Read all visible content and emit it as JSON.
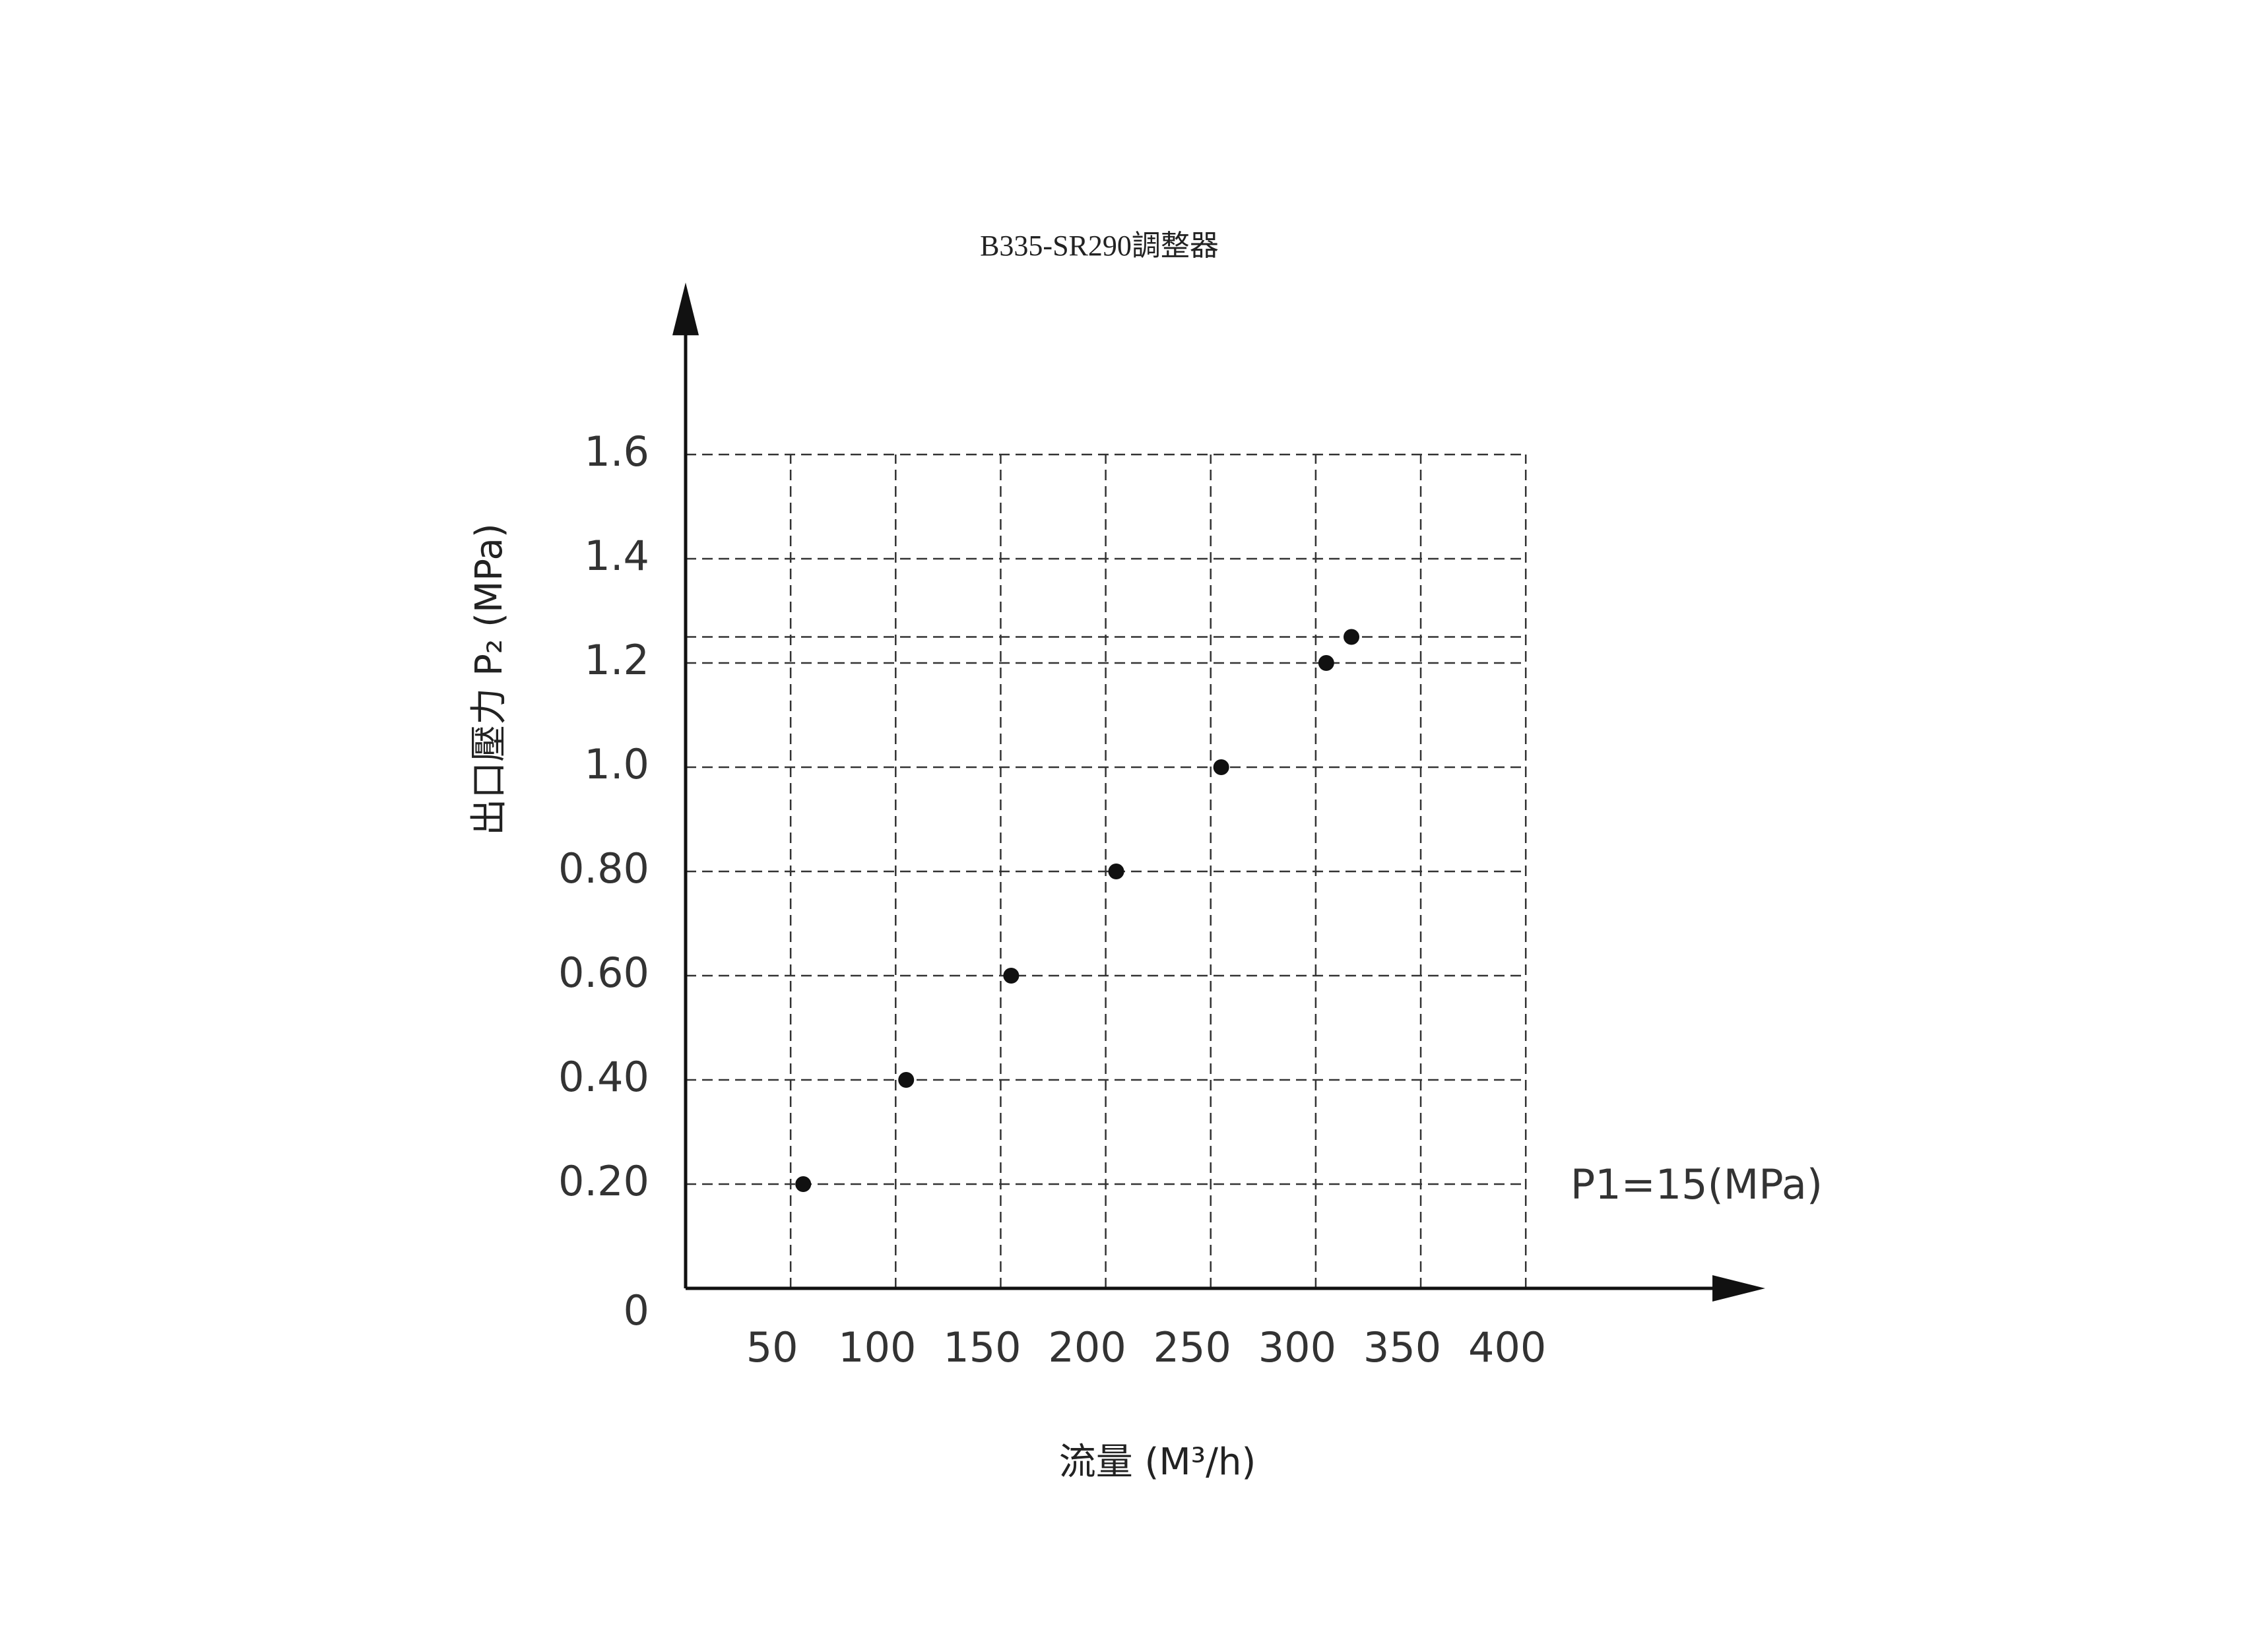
{
  "chart_data": {
    "type": "line",
    "title": "B335-SR290調整器",
    "x_label": "流量 (M³/h)",
    "y_label": "出口壓力 P₂ (MPa)",
    "annotation": "P1=15(MPa)",
    "x": [
      56,
      105,
      155,
      205,
      255,
      305,
      317
    ],
    "series": [
      {
        "color": "#111111",
        "values": [
          0.2,
          0.4,
          0.6,
          0.8,
          1,
          1.2,
          1.25
        ]
      }
    ],
    "xlim": [
      0,
      514
    ],
    "ylim": [
      0,
      1.93
    ],
    "xticks": [
      50,
      100,
      150,
      200,
      250,
      300,
      350,
      400
    ],
    "yticks": [
      0,
      {
        "value": 0.2,
        "label": "0.20"
      },
      {
        "value": 0.4,
        "label": "0.40"
      },
      {
        "value": 0.6,
        "label": "0.60"
      },
      {
        "value": 0.8,
        "label": "0.80"
      },
      {
        "value": 1,
        "label": "1.0"
      },
      1.2,
      1.4,
      1.6
    ],
    "reference_line": 1.25,
    "grid": true
  }
}
